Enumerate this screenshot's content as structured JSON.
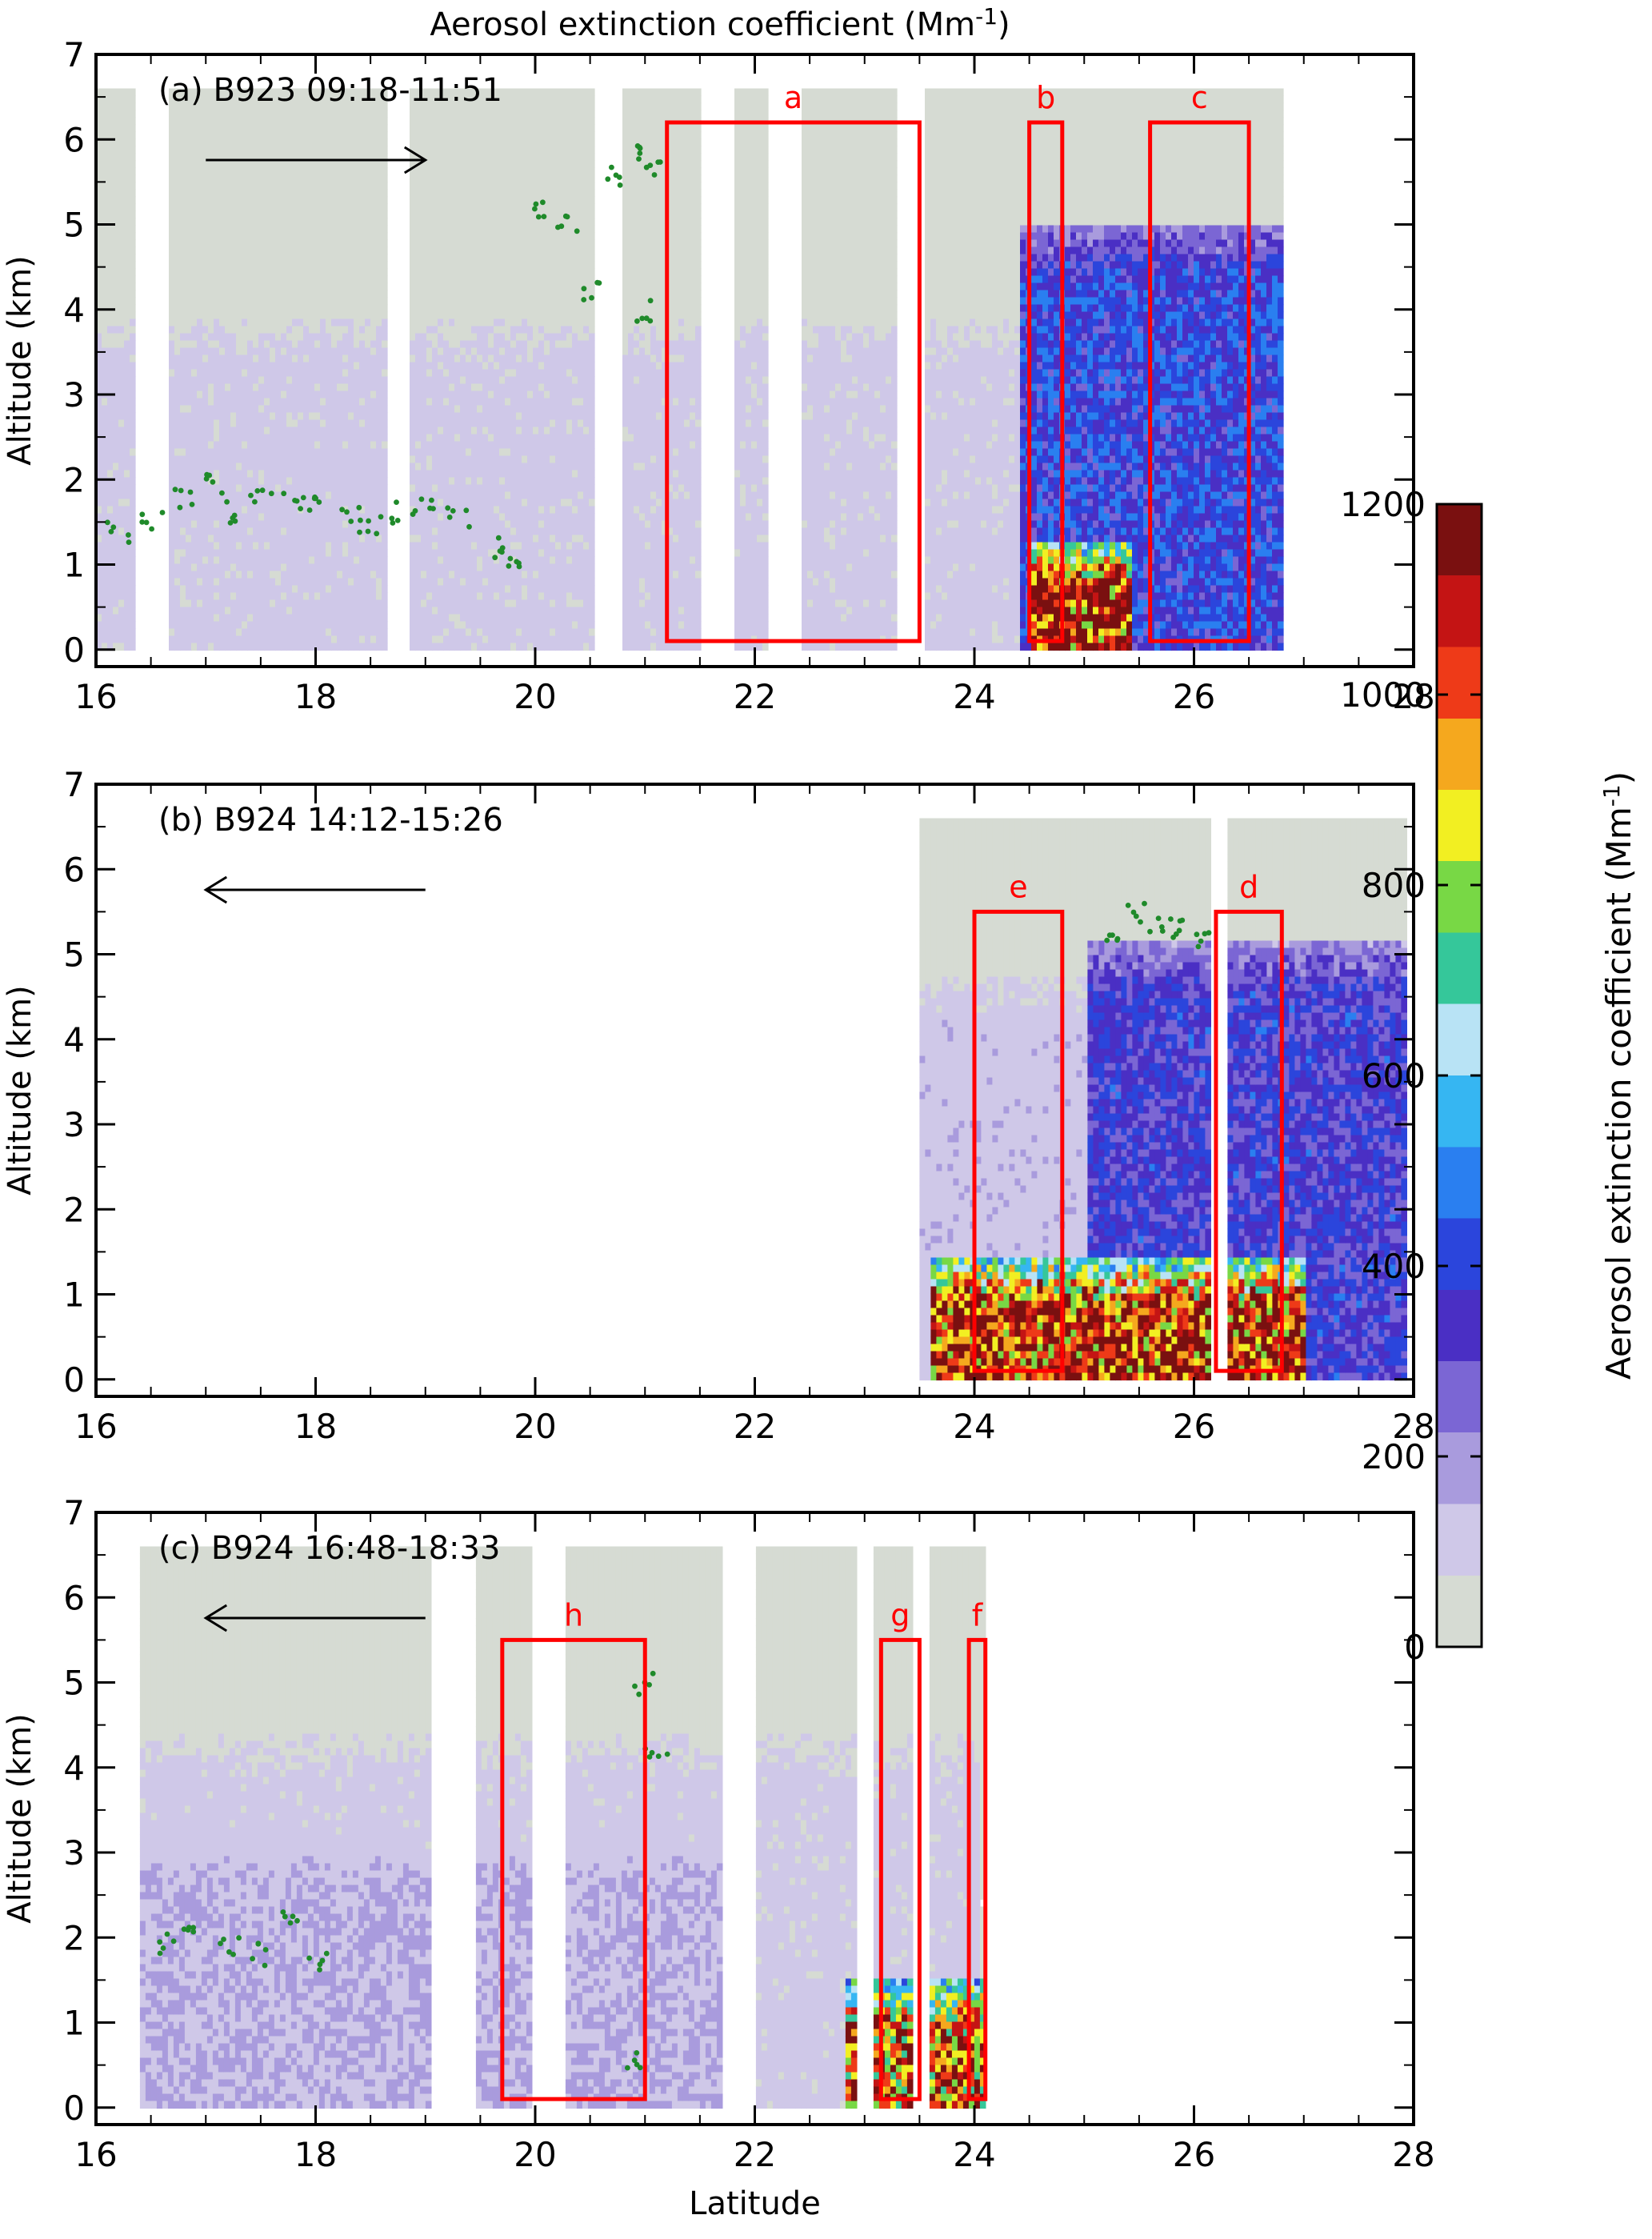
{
  "figure_title": "Aerosol extinction coefficient (Mm",
  "figure_title_sup": "-1",
  "figure_title_end": ")",
  "colorbar": {
    "label": "Aerosol extinction coefficient (Mm",
    "label_sup": "-1",
    "label_end": ")",
    "ticks": [
      "0",
      "200",
      "400",
      "600",
      "800",
      "1000",
      "1200"
    ],
    "range": [
      0,
      1200
    ],
    "colors": [
      "#d6dbd3",
      "#cfc8e8",
      "#a99bdd",
      "#7b66d4",
      "#4a2fc4",
      "#2b45dc",
      "#2a7ff0",
      "#36b6f2",
      "#b8e3f5",
      "#35c79a",
      "#78d845",
      "#f2ef22",
      "#f5a81e",
      "#ee3a18",
      "#c41414",
      "#7a1010"
    ]
  },
  "x_axis_label": "Latitude",
  "y_axis_label": "Altitude (km)",
  "colors": {
    "aerosol_light": "#d6dbd3",
    "aerosol_purple": "#8b7ad8",
    "aerosol_blue": "#2f6fe6",
    "box": "#ff0000",
    "flight_track": "#1f8a2a"
  },
  "chart_data": [
    {
      "type": "heatmap",
      "panel": "(a) B923 09:18-11:51",
      "panel_label": "(a)",
      "flight": "B923",
      "time": "09:18-11:51",
      "direction": "northward",
      "xlim": [
        16,
        28
      ],
      "ylim": [
        -0.2,
        7
      ],
      "xticks": [
        "16",
        "18",
        "20",
        "22",
        "24",
        "26",
        "28"
      ],
      "yticks": [
        "0",
        "1",
        "2",
        "3",
        "4",
        "5",
        "6",
        "7"
      ],
      "xlabel": "",
      "ylabel": "Altitude (km)",
      "boxes": [
        {
          "label": "a",
          "x": [
            21.2,
            23.5
          ],
          "y": [
            0.1,
            6.2
          ]
        },
        {
          "label": "b",
          "x": [
            24.5,
            24.8
          ],
          "y": [
            0.1,
            6.2
          ]
        },
        {
          "label": "c",
          "x": [
            25.6,
            26.5
          ],
          "y": [
            0.1,
            6.2
          ]
        }
      ],
      "flight_track": [
        [
          16.2,
          1.4
        ],
        [
          16.5,
          1.5
        ],
        [
          16.8,
          1.8
        ],
        [
          17.1,
          1.95
        ],
        [
          17.3,
          1.6
        ],
        [
          17.5,
          1.8
        ],
        [
          17.8,
          1.75
        ],
        [
          18.0,
          1.75
        ],
        [
          18.3,
          1.6
        ],
        [
          18.5,
          1.5
        ],
        [
          18.8,
          1.6
        ],
        [
          19.0,
          1.7
        ],
        [
          19.3,
          1.55
        ],
        [
          19.6,
          1.2
        ],
        [
          19.8,
          1.0
        ],
        [
          20.0,
          5.2
        ],
        [
          20.3,
          5.0
        ],
        [
          20.5,
          4.2
        ],
        [
          20.7,
          5.6
        ],
        [
          20.9,
          5.8
        ],
        [
          21.0,
          4.0
        ],
        [
          21.1,
          5.6
        ]
      ],
      "layers": [
        {
          "name": "haze",
          "x": [
            16.0,
            27.0
          ],
          "top": 4.0,
          "level": 100
        },
        {
          "name": "smoke_plume",
          "x": [
            24.4,
            27.0
          ],
          "top": 5.0,
          "level": 400
        },
        {
          "name": "surface_smoke",
          "x": [
            24.5,
            25.4
          ],
          "top": 1.3,
          "level": 1150
        }
      ]
    },
    {
      "type": "heatmap",
      "panel": "(b) B924 14:12-15:26",
      "panel_label": "(b)",
      "flight": "B924",
      "time": "14:12-15:26",
      "direction": "southward",
      "xlim": [
        16,
        28
      ],
      "ylim": [
        -0.2,
        7
      ],
      "xticks": [
        "16",
        "18",
        "20",
        "22",
        "24",
        "26",
        "28"
      ],
      "yticks": [
        "0",
        "1",
        "2",
        "3",
        "4",
        "5",
        "6",
        "7"
      ],
      "xlabel": "",
      "ylabel": "Altitude (km)",
      "boxes": [
        {
          "label": "e",
          "x": [
            24.0,
            24.8
          ],
          "y": [
            0.1,
            5.5
          ]
        },
        {
          "label": "d",
          "x": [
            26.2,
            26.8
          ],
          "y": [
            0.1,
            5.5
          ]
        }
      ],
      "flight_track": [
        [
          25.3,
          5.1
        ],
        [
          25.5,
          5.5
        ],
        [
          25.7,
          5.4
        ],
        [
          25.9,
          5.3
        ],
        [
          26.1,
          5.15
        ]
      ],
      "layers": [
        {
          "name": "haze",
          "x": [
            23.5,
            27.9
          ],
          "top": 4.8,
          "level": 120
        },
        {
          "name": "smoke_plume",
          "x": [
            25.0,
            27.9
          ],
          "top": 5.2,
          "level": 350
        },
        {
          "name": "surface_smoke",
          "x": [
            23.6,
            27.0
          ],
          "top": 1.5,
          "level": 1100
        }
      ]
    },
    {
      "type": "heatmap",
      "panel": "(c) B924 16:48-18:33",
      "panel_label": "(c)",
      "flight": "B924",
      "time": "16:48-18:33",
      "direction": "southward",
      "xlim": [
        16,
        28
      ],
      "ylim": [
        -0.2,
        7
      ],
      "xticks": [
        "16",
        "18",
        "20",
        "22",
        "24",
        "26",
        "28"
      ],
      "yticks": [
        "0",
        "1",
        "2",
        "3",
        "4",
        "5",
        "6",
        "7"
      ],
      "xlabel": "Latitude",
      "ylabel": "Altitude (km)",
      "boxes": [
        {
          "label": "h",
          "x": [
            19.7,
            21.0
          ],
          "y": [
            0.1,
            5.5
          ]
        },
        {
          "label": "g",
          "x": [
            23.15,
            23.5
          ],
          "y": [
            0.1,
            5.5
          ]
        },
        {
          "label": "f",
          "x": [
            23.95,
            24.1
          ],
          "y": [
            0.1,
            5.5
          ]
        }
      ],
      "flight_track": [
        [
          16.6,
          1.9
        ],
        [
          16.8,
          2.0
        ],
        [
          17.2,
          1.9
        ],
        [
          17.5,
          1.8
        ],
        [
          17.8,
          2.2
        ],
        [
          18.0,
          1.7
        ],
        [
          20.9,
          0.6
        ],
        [
          21.0,
          5.0
        ],
        [
          21.1,
          4.1
        ]
      ],
      "layers": [
        {
          "name": "haze",
          "x": [
            16.4,
            24.0
          ],
          "top": 4.5,
          "level": 100
        },
        {
          "name": "elevated_layer",
          "x": [
            16.4,
            22.0
          ],
          "top": 3.3,
          "level": 150
        },
        {
          "name": "surface_smoke",
          "x": [
            22.8,
            24.1
          ],
          "top": 1.6,
          "level": 1000
        }
      ]
    }
  ]
}
